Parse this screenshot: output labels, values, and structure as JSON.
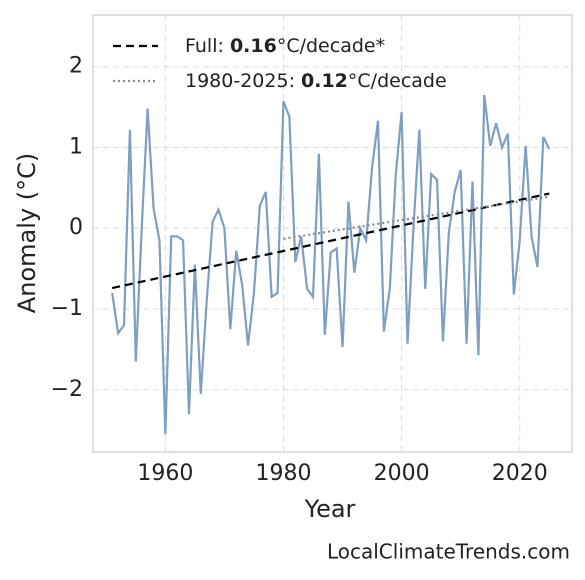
{
  "chart_data": {
    "type": "line",
    "xlabel": "Year",
    "ylabel": "Anomaly (°C)",
    "watermark": "LocalClimateTrends.com",
    "x": [
      1951,
      1952,
      1953,
      1954,
      1955,
      1956,
      1957,
      1958,
      1959,
      1960,
      1961,
      1962,
      1963,
      1964,
      1965,
      1966,
      1967,
      1968,
      1969,
      1970,
      1971,
      1972,
      1973,
      1974,
      1975,
      1976,
      1977,
      1978,
      1979,
      1980,
      1981,
      1982,
      1983,
      1984,
      1985,
      1986,
      1987,
      1988,
      1989,
      1990,
      1991,
      1992,
      1993,
      1994,
      1995,
      1996,
      1997,
      1998,
      1999,
      2000,
      2001,
      2002,
      2003,
      2004,
      2005,
      2006,
      2007,
      2008,
      2009,
      2010,
      2011,
      2012,
      2013,
      2014,
      2015,
      2016,
      2017,
      2018,
      2019,
      2020,
      2021,
      2022,
      2023,
      2024,
      2025
    ],
    "series": [
      {
        "color": "#7f9fc0",
        "values": [
          -0.8,
          -1.3,
          -1.2,
          1.22,
          -1.65,
          0.0,
          1.48,
          0.25,
          -0.15,
          -2.55,
          -0.1,
          -0.1,
          -0.15,
          -2.3,
          -0.45,
          -2.05,
          -0.9,
          0.08,
          0.23,
          0.0,
          -1.25,
          -0.28,
          -0.7,
          -1.45,
          -0.8,
          0.28,
          0.45,
          -0.85,
          -0.8,
          1.57,
          1.38,
          -0.42,
          -0.1,
          -0.75,
          -0.85,
          0.92,
          -1.32,
          -0.3,
          -0.25,
          -1.47,
          0.33,
          -0.55,
          0.0,
          -0.15,
          0.75,
          1.33,
          -1.28,
          -0.75,
          0.65,
          1.44,
          -1.43,
          0.0,
          1.22,
          -0.75,
          0.67,
          0.6,
          -1.4,
          -0.05,
          0.45,
          0.72,
          -1.43,
          0.58,
          -1.57,
          1.65,
          1.02,
          1.3,
          1.0,
          1.17,
          -0.82,
          -0.15,
          1.02,
          -0.1,
          -0.48,
          1.13,
          0.98
        ]
      }
    ],
    "trend_lines": [
      {
        "name_parts": [
          "Full: ",
          "0.16",
          "°C/decade*"
        ],
        "color": "#000000",
        "dash": "8 5",
        "x": [
          1951,
          2025
        ],
        "values": [
          -0.74,
          0.43
        ]
      },
      {
        "name_parts": [
          "1980-2025: ",
          "0.12",
          "°C/decade"
        ],
        "color": "#888888",
        "dash": "2 3",
        "x": [
          1980,
          2025
        ],
        "values": [
          -0.13,
          0.39
        ]
      }
    ],
    "xlim": [
      1947.75,
      2028.85
    ],
    "ylim": [
      -2.77,
      2.64
    ],
    "xticks": [
      1960,
      1980,
      2000,
      2020
    ],
    "yticks": [
      {
        "value": -2,
        "label": "−2"
      },
      {
        "value": -1,
        "label": "−1"
      },
      0,
      1,
      2
    ],
    "grid": true
  }
}
